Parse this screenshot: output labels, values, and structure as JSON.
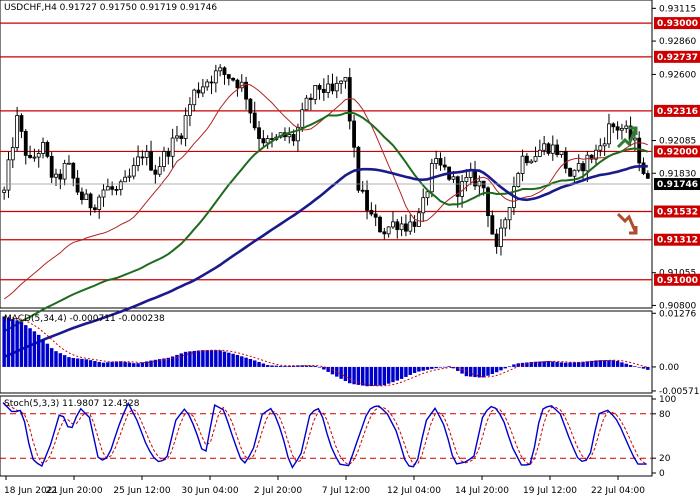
{
  "chart_data": [
    {
      "type": "candlestick",
      "title": "USDCHF,H4",
      "ohlc_header": [
        "0.91727",
        "0.91750",
        "0.91719",
        "0.91746"
      ],
      "ylim": [
        0.9078,
        0.9318
      ],
      "price_ticks": [
        "0.93115",
        "0.92860",
        "0.92600",
        "0.92085",
        "0.91830",
        "0.91055",
        "0.90800"
      ],
      "levels": [
        {
          "label": "0.93000",
          "value": 0.93
        },
        {
          "label": "0.92737",
          "value": 0.92737
        },
        {
          "label": "0.92316",
          "value": 0.92316
        },
        {
          "label": "0.92000",
          "value": 0.92
        },
        {
          "label": "0.91532",
          "value": 0.91532
        },
        {
          "label": "0.91312",
          "value": 0.91312
        },
        {
          "label": "0.91000",
          "value": 0.91
        }
      ],
      "current_price": {
        "label": "0.91746",
        "value": 0.91746
      },
      "level_color": "#cc0000",
      "candle_color": "#000000",
      "ma_colors": {
        "fast": "#b22222",
        "medium": "#1e6b1e",
        "slow": "#1a1a8c"
      },
      "signals": [
        {
          "name": "up-arrow",
          "color": "#2e7d32"
        },
        {
          "name": "down-arrow",
          "color": "#b34a2a"
        }
      ],
      "x_labels": [
        "18 Jun 2021",
        "22 Jun 20:00",
        "25 Jun 12:00",
        "30 Jun 04:00",
        "2 Jul 20:00",
        "7 Jul 12:00",
        "12 Jul 04:00",
        "14 Jul 20:00",
        "19 Jul 12:00",
        "22 Jul 04:00"
      ],
      "close_anchors": [
        0.9168,
        0.9225,
        0.919,
        0.9205,
        0.9175,
        0.919,
        0.9165,
        0.9158,
        0.9172,
        0.9168,
        0.918,
        0.92,
        0.9185,
        0.9202,
        0.9215,
        0.9245,
        0.9255,
        0.9262,
        0.9258,
        0.925,
        0.9215,
        0.9205,
        0.9212,
        0.921,
        0.9238,
        0.925,
        0.9245,
        0.9258,
        0.9175,
        0.915,
        0.9138,
        0.9145,
        0.9142,
        0.915,
        0.919,
        0.9185,
        0.917,
        0.918,
        0.9172,
        0.912,
        0.916,
        0.9195,
        0.9198,
        0.9205,
        0.92,
        0.9178,
        0.9192,
        0.92,
        0.922,
        0.9218,
        0.9205,
        0.9175
      ]
    },
    {
      "type": "bar",
      "title": "MACD(5,34,4) -0.000711 -0.000238",
      "ylim": [
        -0.0062,
        0.0133
      ],
      "y_ticks": [
        "0.01276",
        "0.00",
        "-0.005711"
      ],
      "bar_color": "#0000cc",
      "signal_color": "#cc0000",
      "anchors": [
        0.012,
        0.0108,
        0.008,
        0.004,
        0.0022,
        0.0018,
        0.001,
        0.0014,
        0.0008,
        0.0016,
        0.0022,
        0.0036,
        0.004,
        0.004,
        0.003,
        0.0018,
        0.0004,
        0.0002,
        0.0004,
        0.0002,
        -0.002,
        -0.004,
        -0.0046,
        -0.0044,
        -0.003,
        -0.0012,
        -0.0004,
        0.0002,
        -0.0022,
        -0.0026,
        -0.001,
        0.0008,
        0.0012,
        0.0014,
        0.001,
        0.0012,
        0.0016,
        0.0016,
        0.0004,
        -0.0007
      ]
    },
    {
      "type": "line",
      "title": "Stoch(5,3,3) 11.9807 12.4328",
      "ylim": [
        0,
        100
      ],
      "y_ticks": [
        "100",
        "80",
        "20",
        "0"
      ],
      "levels": [
        80,
        20
      ],
      "main_color": "#0000cc",
      "signal_color": "#cc0000",
      "main_anchors": [
        95,
        82,
        85,
        20,
        8,
        40,
        85,
        55,
        88,
        75,
        15,
        22,
        62,
        95,
        70,
        35,
        15,
        18,
        72,
        88,
        60,
        20,
        92,
        85,
        45,
        10,
        30,
        80,
        88,
        55,
        5,
        25,
        82,
        88,
        40,
        12,
        10,
        48,
        85,
        92,
        80,
        55,
        10,
        8,
        70,
        88,
        62,
        12,
        14,
        22,
        80,
        92,
        75,
        35,
        10,
        12,
        85,
        92,
        80,
        45,
        15,
        18,
        80,
        85,
        70,
        40,
        12,
        12
      ]
    }
  ]
}
